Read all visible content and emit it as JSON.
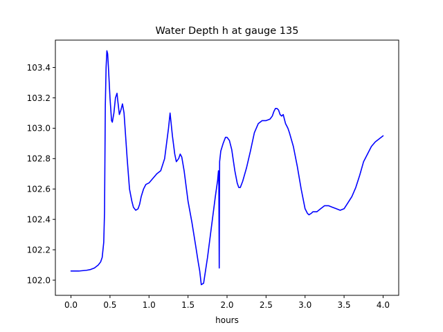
{
  "chart_data": {
    "type": "line",
    "title": "Water Depth h at gauge 135",
    "xlabel": "hours",
    "ylabel": "",
    "xlim": [
      -0.2,
      4.2
    ],
    "ylim": [
      101.9,
      103.58
    ],
    "xticks": [
      0.0,
      0.5,
      1.0,
      1.5,
      2.0,
      2.5,
      3.0,
      3.5,
      4.0
    ],
    "xtick_labels": [
      "0.0",
      "0.5",
      "1.0",
      "1.5",
      "2.0",
      "2.5",
      "3.0",
      "3.5",
      "4.0"
    ],
    "yticks": [
      102.0,
      102.2,
      102.4,
      102.6,
      102.8,
      103.0,
      103.2,
      103.4
    ],
    "ytick_labels": [
      "102.0",
      "102.2",
      "102.4",
      "102.6",
      "102.8",
      "103.0",
      "103.2",
      "103.4"
    ],
    "grid": false,
    "legend": false,
    "series": [
      {
        "color": "#0000ff",
        "x": [
          0.0,
          0.1,
          0.2,
          0.25,
          0.3,
          0.35,
          0.38,
          0.4,
          0.42,
          0.425,
          0.43,
          0.435,
          0.44,
          0.45,
          0.46,
          0.47,
          0.48,
          0.5,
          0.52,
          0.53,
          0.55,
          0.57,
          0.59,
          0.6,
          0.62,
          0.64,
          0.66,
          0.68,
          0.7,
          0.72,
          0.75,
          0.78,
          0.8,
          0.83,
          0.86,
          0.88,
          0.9,
          0.93,
          0.96,
          1.0,
          1.05,
          1.1,
          1.15,
          1.2,
          1.22,
          1.25,
          1.27,
          1.3,
          1.33,
          1.35,
          1.38,
          1.4,
          1.42,
          1.45,
          1.48,
          1.5,
          1.55,
          1.6,
          1.63,
          1.65,
          1.67,
          1.7,
          1.75,
          1.8,
          1.85,
          1.88,
          1.89,
          1.895,
          1.9,
          1.905,
          1.92,
          1.95,
          1.98,
          2.0,
          2.03,
          2.06,
          2.1,
          2.13,
          2.15,
          2.17,
          2.2,
          2.25,
          2.3,
          2.35,
          2.4,
          2.45,
          2.5,
          2.55,
          2.58,
          2.6,
          2.62,
          2.64,
          2.66,
          2.68,
          2.7,
          2.72,
          2.73,
          2.75,
          2.78,
          2.8,
          2.85,
          2.9,
          2.95,
          3.0,
          3.03,
          3.05,
          3.08,
          3.1,
          3.15,
          3.2,
          3.25,
          3.3,
          3.35,
          3.4,
          3.45,
          3.5,
          3.55,
          3.6,
          3.65,
          3.7,
          3.75,
          3.8,
          3.85,
          3.9,
          3.95,
          4.0
        ],
        "y": [
          102.06,
          102.06,
          102.065,
          102.07,
          102.08,
          102.1,
          102.12,
          102.15,
          102.25,
          102.35,
          102.45,
          102.8,
          103.15,
          103.4,
          103.51,
          103.49,
          103.4,
          103.2,
          103.05,
          103.04,
          103.1,
          103.2,
          103.23,
          103.18,
          103.09,
          103.12,
          103.16,
          103.1,
          102.95,
          102.8,
          102.6,
          102.52,
          102.48,
          102.46,
          102.47,
          102.5,
          102.55,
          102.6,
          102.63,
          102.64,
          102.67,
          102.7,
          102.72,
          102.8,
          102.88,
          103.0,
          103.1,
          102.95,
          102.83,
          102.78,
          102.8,
          102.83,
          102.81,
          102.72,
          102.6,
          102.52,
          102.38,
          102.22,
          102.12,
          102.06,
          101.97,
          101.98,
          102.15,
          102.35,
          102.55,
          102.66,
          102.72,
          102.62,
          102.08,
          102.78,
          102.85,
          102.9,
          102.94,
          102.94,
          102.92,
          102.86,
          102.72,
          102.64,
          102.61,
          102.61,
          102.65,
          102.74,
          102.85,
          102.97,
          103.03,
          103.05,
          103.05,
          103.06,
          103.08,
          103.11,
          103.13,
          103.13,
          103.12,
          103.09,
          103.08,
          103.09,
          103.07,
          103.03,
          103.0,
          102.97,
          102.88,
          102.75,
          102.6,
          102.47,
          102.44,
          102.43,
          102.44,
          102.45,
          102.45,
          102.47,
          102.49,
          102.49,
          102.48,
          102.47,
          102.46,
          102.47,
          102.51,
          102.55,
          102.61,
          102.69,
          102.78,
          102.83,
          102.88,
          102.91,
          102.93,
          102.95
        ]
      }
    ]
  }
}
